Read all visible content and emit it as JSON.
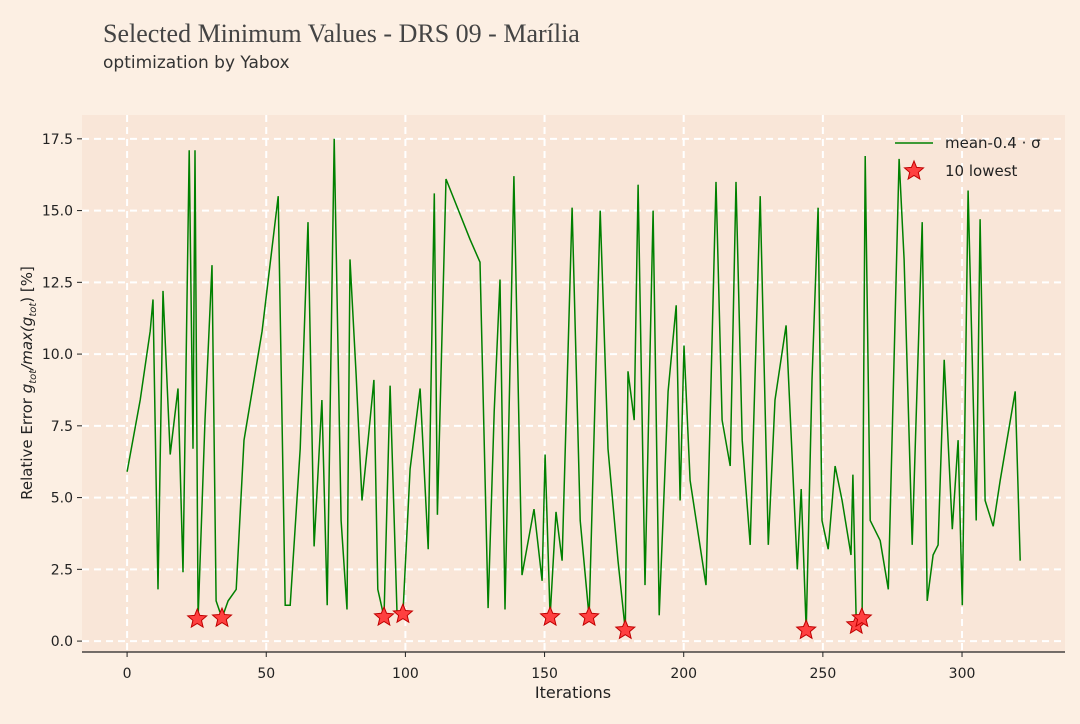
{
  "chart_data": {
    "type": "line",
    "title": "Selected Minimum Values - DRS 09 - Marília",
    "subtitle": "optimization by Yabox",
    "xlabel": "Iterations",
    "ylabel_parts": [
      "Relative Error ",
      "g",
      "tot",
      "/max(",
      "g",
      "tot",
      ") [%]"
    ],
    "xlim": [
      -16.2,
      337
    ],
    "ylim": [
      -0.38,
      18.33
    ],
    "xticks": [
      0,
      50,
      100,
      150,
      200,
      250,
      300
    ],
    "yticks": [
      {
        "value": 0,
        "label": "0.0"
      },
      2.5,
      {
        "value": 5,
        "label": "5.0"
      },
      7.5,
      {
        "value": 10,
        "label": "10.0"
      },
      12.5,
      {
        "value": 15,
        "label": "15.0"
      },
      17.5
    ],
    "grid": true,
    "legend": "upper right",
    "series": [
      {
        "name": "mean-0.4 · σ",
        "type": "line",
        "color": "#008000",
        "x": [
          0,
          4.7,
          8.3,
          9.3,
          11.1,
          12.9,
          15.5,
          18.3,
          20.1,
          22.3,
          23.7,
          24.4,
          25.5,
          28,
          30.5,
          32,
          34.1,
          36.3,
          39.2,
          42,
          48.5,
          54.3,
          56.8,
          58.6,
          62.2,
          65,
          67.2,
          70,
          71.9,
          74.4,
          76.9,
          79,
          80.1,
          82.3,
          84.4,
          86.6,
          88.7,
          90.1,
          92.3,
          94.5,
          97,
          99.1,
          101.7,
          105.3,
          108.2,
          110.4,
          111.5,
          114.6,
          123.2,
          126.8,
          129.7,
          131.9,
          134,
          135.8,
          139,
          141.9,
          146.2,
          149.1,
          150.2,
          152,
          154.1,
          156.3,
          159.9,
          162.8,
          166,
          170,
          172.8,
          176.4,
          179,
          180,
          182.2,
          183.6,
          186.1,
          189,
          191.2,
          194.4,
          197.3,
          198.7,
          200.1,
          202.3,
          208,
          211.6,
          213.8,
          216.7,
          218.8,
          221,
          223.9,
          227.5,
          230.4,
          232.8,
          236.8,
          240.8,
          242.2,
          244,
          246.1,
          248.3,
          249.7,
          251.9,
          254.4,
          256.9,
          260.1,
          260.8,
          262,
          264.1,
          265.2,
          267,
          270.6,
          273.5,
          277.4,
          279.2,
          282.1,
          285.7,
          287.5,
          289.6,
          291.4,
          293.6,
          296.5,
          298.6,
          300.1,
          302.2,
          305.1,
          306.5,
          308.3,
          311.2,
          313.7,
          319.1,
          320.9
        ],
        "values": [
          5.9,
          8.4,
          10.8,
          11.9,
          1.8,
          12.2,
          6.5,
          8.8,
          2.4,
          17.1,
          6.7,
          17.1,
          0.8,
          7.7,
          13.1,
          1.4,
          0.8,
          1.4,
          1.8,
          7,
          10.8,
          15.5,
          1.25,
          1.25,
          6.7,
          14.6,
          3.3,
          8.4,
          1.25,
          17.5,
          4.2,
          1.1,
          13.3,
          9.3,
          4.9,
          7,
          9.1,
          1.8,
          0.84,
          8.9,
          1,
          0.94,
          6,
          8.8,
          3.2,
          15.6,
          4.4,
          16.1,
          14,
          13.2,
          1.15,
          8,
          12.6,
          1.1,
          16.2,
          2.3,
          4.6,
          2.1,
          6.5,
          0.84,
          4.5,
          2.8,
          15.1,
          4.2,
          0.84,
          15,
          6.7,
          2.8,
          0.38,
          9.4,
          7.7,
          15.9,
          1.95,
          15,
          0.9,
          8.7,
          11.7,
          4.9,
          10.3,
          5.6,
          1.95,
          16,
          7.7,
          6.1,
          16,
          7,
          3.35,
          15.5,
          3.35,
          8.4,
          11,
          2.5,
          5.3,
          0.38,
          9.1,
          15.1,
          4.2,
          3.2,
          6.1,
          4.9,
          3,
          5.8,
          0.56,
          0.8,
          16.9,
          4.2,
          3.5,
          1.8,
          16.8,
          13.3,
          3.35,
          14.6,
          1.4,
          3,
          3.35,
          9.8,
          3.9,
          7,
          1.25,
          15.7,
          4.2,
          14.7,
          4.9,
          4,
          5.6,
          8.7,
          2.8
        ]
      },
      {
        "name": "10 lowest",
        "type": "scatter",
        "color": "#ff4040",
        "x": [
          25.2,
          34.1,
          92.3,
          99.1,
          152,
          166,
          179,
          244,
          262,
          264
        ],
        "values": [
          0.77,
          0.8,
          0.84,
          0.94,
          0.84,
          0.84,
          0.38,
          0.38,
          0.56,
          0.8
        ]
      }
    ]
  }
}
